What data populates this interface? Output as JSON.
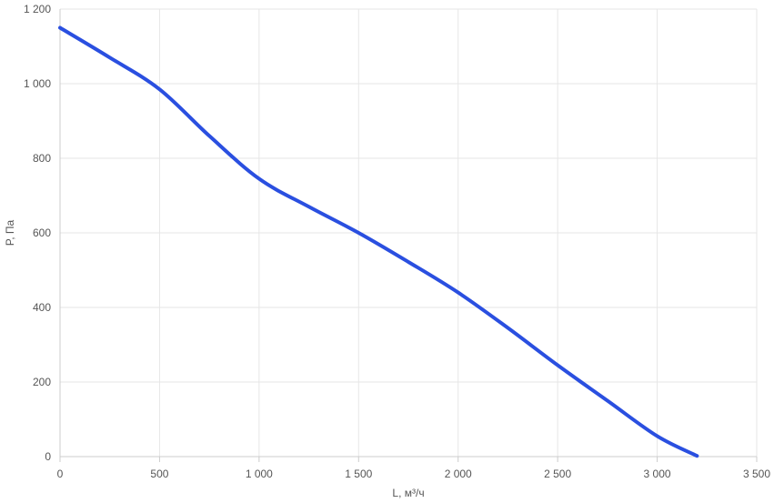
{
  "chart_data": {
    "type": "line",
    "xlabel": "L, м³/ч",
    "ylabel": "P, Па",
    "xlim": [
      0,
      3500
    ],
    "ylim": [
      0,
      1200
    ],
    "x_ticks": [
      0,
      500,
      1000,
      1500,
      2000,
      2500,
      3000,
      3500
    ],
    "x_tick_labels": [
      "0",
      "500",
      "1 000",
      "1 500",
      "2 000",
      "2 500",
      "3 000",
      "3 500"
    ],
    "y_ticks": [
      0,
      200,
      400,
      600,
      800,
      1000,
      1200
    ],
    "y_tick_labels": [
      "0",
      "200",
      "400",
      "600",
      "800",
      "1 000",
      "1 200"
    ],
    "grid": true,
    "legend": "none",
    "series": [
      {
        "color": "#2a4fe0",
        "points": [
          [
            0,
            1150
          ],
          [
            250,
            1070
          ],
          [
            500,
            985
          ],
          [
            750,
            860
          ],
          [
            1000,
            745
          ],
          [
            1250,
            670
          ],
          [
            1500,
            600
          ],
          [
            1750,
            522
          ],
          [
            2000,
            440
          ],
          [
            2250,
            345
          ],
          [
            2500,
            245
          ],
          [
            2750,
            150
          ],
          [
            3000,
            55
          ],
          [
            3200,
            2
          ]
        ]
      }
    ]
  }
}
